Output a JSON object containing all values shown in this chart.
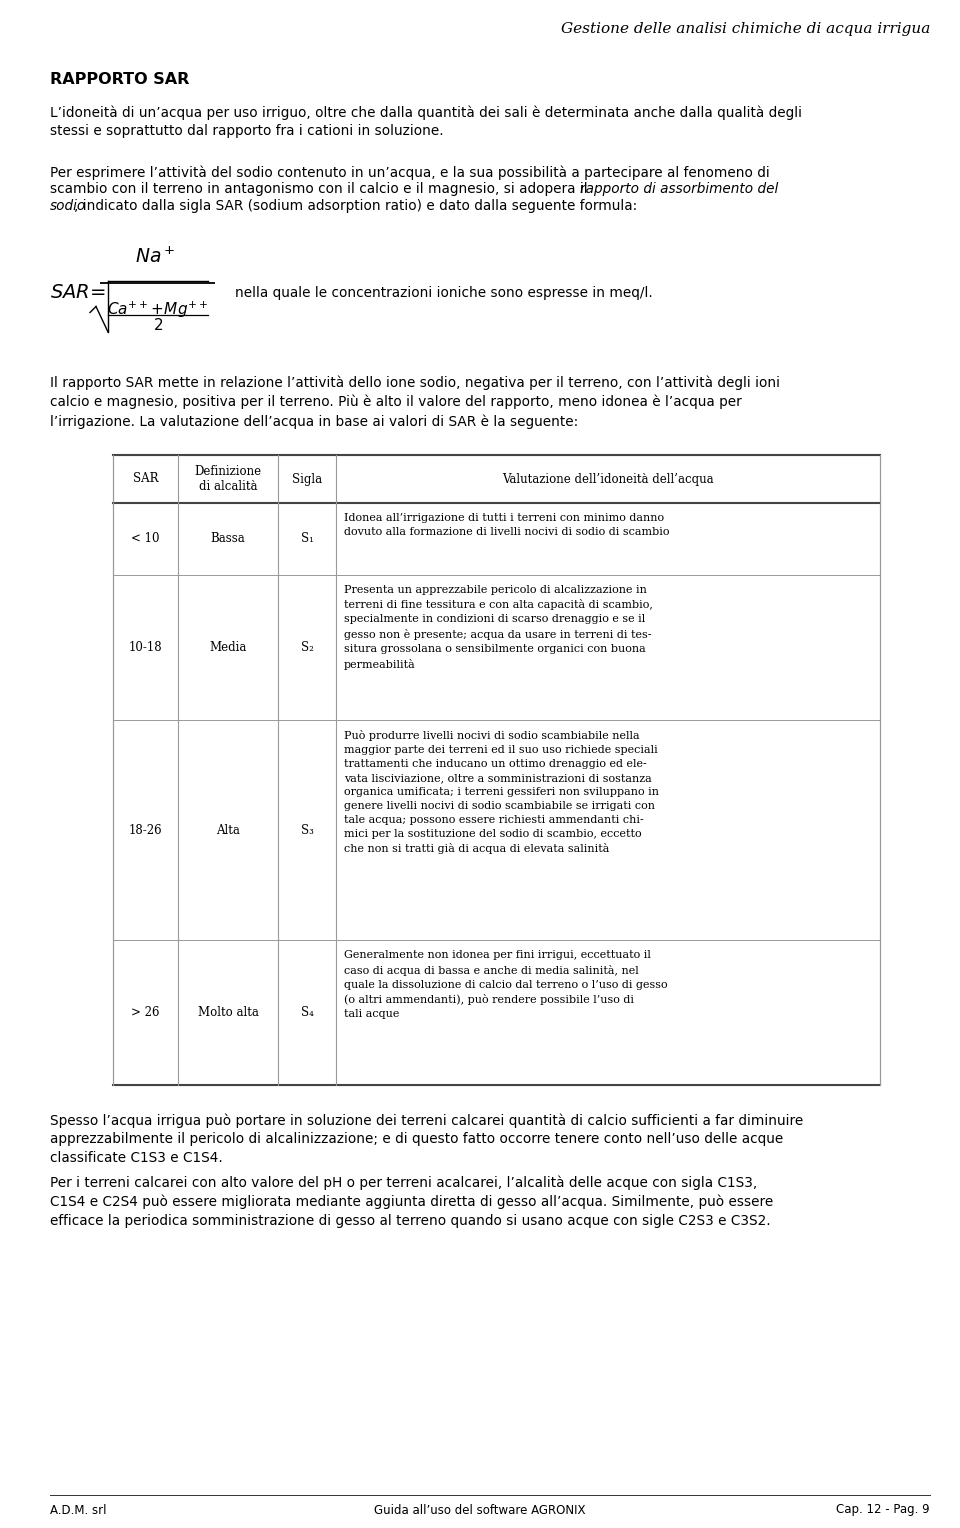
{
  "title": "Gestione delle analisi chimiche di acqua irrigua",
  "header_bold": "RAPPORTO SAR",
  "para1": "L’idoneità di un’acqua per uso irriguo, oltre che dalla quantità dei sali è determinata anche dalla qualità degli\nstessi e soprattutto dal rapporto fra i cationi in soluzione.",
  "para2_line1": "Per esprimere l’attività del sodio contenuto in un’acqua, e la sua possibilità a partecipare al fenomeno di",
  "para2_line2_normal": "scambio con il terreno in antagonismo con il calcio e il magnesio, si adopera il ",
  "para2_line2_italic": "rapporto di assorbimento del",
  "para2_line3_italic": "sodio",
  "para2_line3_normal": ", indicato dalla sigla SAR (sodium adsorption ratio) e dato dalla seguente formula:",
  "formula_text": "nella quale le concentrazioni ioniche sono espresse in meq/l.",
  "para3": "Il rapporto SAR mette in relazione l’attività dello ione sodio, negativa per il terreno, con l’attività degli ioni\ncalcio e magnesio, positiva per il terreno. Più è alto il valore del rapporto, meno idonea è l’acqua per\nl’irrigazione. La valutazione dell’acqua in base ai valori di SAR è la seguente:",
  "table_headers": [
    "SAR",
    "Definizione\ndi alcalità",
    "Sigla",
    "Valutazione dell’idoneità dell’acqua"
  ],
  "table_rows": [
    [
      "< 10",
      "Bassa",
      "S₁",
      "Idonea all’irrigazione di tutti i terreni con minimo danno\ndovuto alla formazione di livelli nocivi di sodio di scambio"
    ],
    [
      "10-18",
      "Media",
      "S₂",
      "Presenta un apprezzabile pericolo di alcalizzazione in\nterreni di fine tessitura e con alta capacità di scambio,\nspecialmente in condizioni di scarso drenaggio e se il\ngesso non è presente; acqua da usare in terreni di tes-\nsitura grossolana o sensibilmente organici con buona\npermeabilità"
    ],
    [
      "18-26",
      "Alta",
      "S₃",
      "Può produrre livelli nocivi di sodio scambiabile nella\nmaggior parte dei terreni ed il suo uso richiede speciali\ntrattamenti che inducano un ottimo drenaggio ed ele-\nvata lisciviazione, oltre a somministrazioni di sostanza\norganica umificata; i terreni gessiferi non sviluppano in\ngenere livelli nocivi di sodio scambiabile se irrigati con\ntale acqua; possono essere richiesti ammendanti chi-\nmici per la sostituzione del sodio di scambio, eccetto\nche non si tratti già di acqua di elevata salinità"
    ],
    [
      "> 26",
      "Molto alta",
      "S₄",
      "Generalmente non idonea per fini irrigui, eccettuato il\ncaso di acqua di bassa e anche di media salinità, nel\nquale la dissoluzione di calcio dal terreno o l’uso di gesso\n(o altri ammendanti), può rendere possibile l’uso di\ntali acque"
    ]
  ],
  "para4": "Spesso l’acqua irrigua può portare in soluzione dei terreni calcarei quantità di calcio sufficienti a far diminuire\napprezzabilmente il pericolo di alcalinizzazione; e di questo fatto occorre tenere conto nell’uso delle acque\nclassificate C1S3 e C1S4.",
  "para5": "Per i terreni calcarei con alto valore del pH o per terreni acalcarei, l’alcalità delle acque con sigla C1S3,\nC1S4 e C2S4 può essere migliorata mediante aggiunta diretta di gesso all’acqua. Similmente, può essere\nefficace la periodica somministrazione di gesso al terreno quando si usano acque con sigle C2S3 e C3S2.",
  "footer_left": "A.D.M. srl",
  "footer_center": "Guida all’uso del software AGRONIX",
  "footer_right": "Cap. 12 - Pag. 9",
  "bg_color": "#ffffff",
  "text_color": "#000000",
  "table_border_color": "#999999"
}
